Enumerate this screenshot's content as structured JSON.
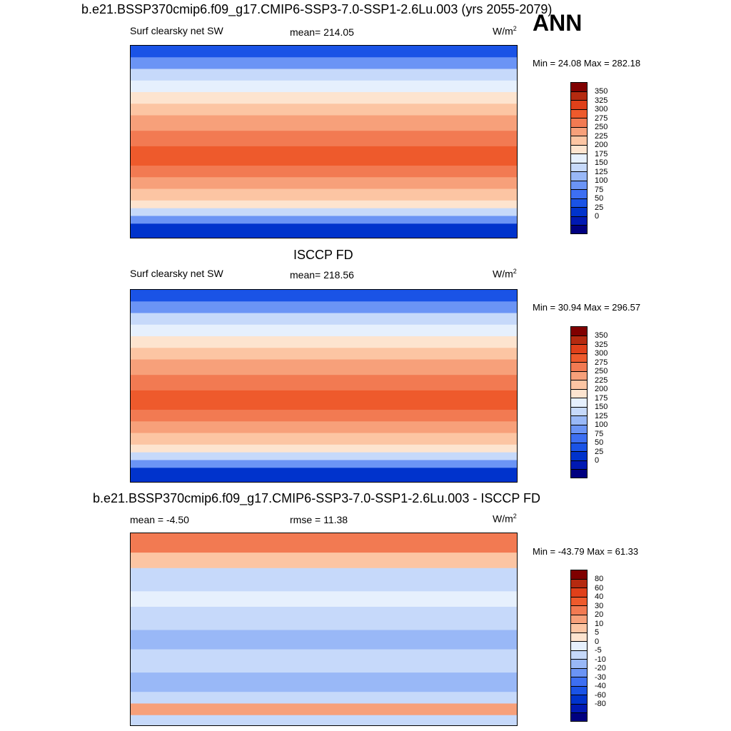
{
  "ann_label": "ANN",
  "panels": [
    {
      "title": "b.e21.BSSP370cmip6.f09_g17.CMIP6-SSP3-7.0-SSP1-2.6Lu.003 (yrs 2055-2079)",
      "left_label": "Surf clearsky net SW",
      "center_label": "mean= 214.05",
      "units": "W/m",
      "units_sup": "2",
      "minmax": "Min =  24.08 Max = 282.18",
      "ticks": [
        "350",
        "325",
        "300",
        "275",
        "250",
        "225",
        "200",
        "175",
        "150",
        "125",
        "100",
        "75",
        "50",
        "25",
        "0"
      ]
    },
    {
      "title": "ISCCP FD",
      "left_label": "Surf clearsky net SW",
      "center_label": "mean= 218.56",
      "units": "W/m",
      "units_sup": "2",
      "minmax": "Min =  30.94 Max = 296.57",
      "ticks": [
        "350",
        "325",
        "300",
        "275",
        "250",
        "225",
        "200",
        "175",
        "150",
        "125",
        "100",
        "75",
        "50",
        "25",
        "0"
      ]
    },
    {
      "title": "b.e21.BSSP370cmip6.f09_g17.CMIP6-SSP3-7.0-SSP1-2.6Lu.003 - ISCCP FD",
      "left_label": "mean =  -4.50",
      "center_label": "rmse =  11.38",
      "units": "W/m",
      "units_sup": "2",
      "minmax": "Min = -43.79 Max =  61.33",
      "ticks": [
        "80",
        "60",
        "40",
        "30",
        "20",
        "10",
        "5",
        "0",
        "-5",
        "-10",
        "-20",
        "-30",
        "-40",
        "-60",
        "-80"
      ]
    }
  ],
  "colors": {
    "abs_scale": [
      "#000080",
      "#0019b3",
      "#0033cc",
      "#1a53e6",
      "#3d6ff2",
      "#6b94f5",
      "#99b8f7",
      "#c6d9fa",
      "#e6f0fd",
      "#fde4cf",
      "#fcc5a3",
      "#f7a07a",
      "#f27a52",
      "#ee5a2c",
      "#e0401a",
      "#b52a10",
      "#800000"
    ],
    "diff_scale": [
      "#000080",
      "#0019b3",
      "#0033cc",
      "#1a53e6",
      "#3d6ff2",
      "#6b94f5",
      "#99b8f7",
      "#c6d9fa",
      "#e6f0fd",
      "#fde4cf",
      "#fcc5a3",
      "#f7a07a",
      "#f27a52",
      "#ee5a2c",
      "#e0401a",
      "#b52a10",
      "#800000"
    ]
  },
  "chart_data": [
    {
      "type": "heatmap",
      "title": "b.e21.BSSP370cmip6.f09_g17.CMIP6-SSP3-7.0-SSP1-2.6Lu.003 (yrs 2055-2079)",
      "variable": "Surf clearsky net SW",
      "units": "W/m2",
      "mean": 214.05,
      "min": 24.08,
      "max": 282.18,
      "colorbar_levels": [
        0,
        25,
        50,
        75,
        100,
        125,
        150,
        175,
        200,
        225,
        250,
        275,
        300,
        325,
        350
      ]
    },
    {
      "type": "heatmap",
      "title": "ISCCP FD",
      "variable": "Surf clearsky net SW",
      "units": "W/m2",
      "mean": 218.56,
      "min": 30.94,
      "max": 296.57,
      "colorbar_levels": [
        0,
        25,
        50,
        75,
        100,
        125,
        150,
        175,
        200,
        225,
        250,
        275,
        300,
        325,
        350
      ]
    },
    {
      "type": "heatmap",
      "title": "b.e21.BSSP370cmip6.f09_g17.CMIP6-SSP3-7.0-SSP1-2.6Lu.003 - ISCCP FD",
      "units": "W/m2",
      "mean": -4.5,
      "rmse": 11.38,
      "min": -43.79,
      "max": 61.33,
      "colorbar_levels": [
        -80,
        -60,
        -40,
        -30,
        -20,
        -10,
        -5,
        0,
        5,
        10,
        20,
        30,
        40,
        60,
        80
      ]
    }
  ]
}
